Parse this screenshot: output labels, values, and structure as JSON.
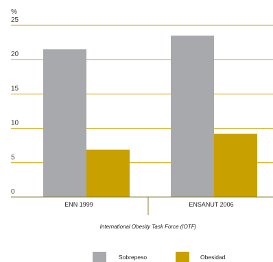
{
  "chart_data": {
    "type": "bar",
    "ylabel": "%",
    "ylim": [
      0,
      25
    ],
    "yticks": [
      0,
      5,
      10,
      15,
      20,
      25
    ],
    "grid": true,
    "categories": [
      "ENN 1999",
      "ENSANUT 2006"
    ],
    "series": [
      {
        "name": "Sobrepeso",
        "values": [
          21.5,
          23.5
        ],
        "color": "#a7a9ac"
      },
      {
        "name": "Obesidad",
        "values": [
          6.9,
          9.2
        ],
        "color": "#c8a100"
      }
    ],
    "annotation": "International Obesity Task Force (IOTF)",
    "legend_position": "bottom-center",
    "grid_color": "#c8a100",
    "axis_color": "#8a7a3a"
  }
}
